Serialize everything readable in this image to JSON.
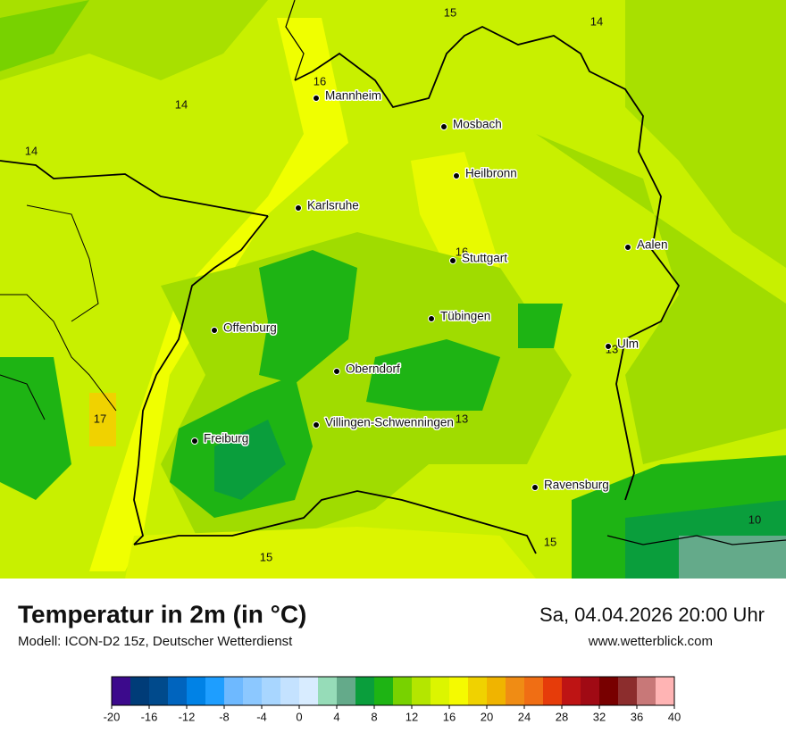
{
  "header": {
    "title": "Temperatur in 2m (in °C)",
    "model": "Modell: ICON-D2 15z, Deutscher Wetterdienst",
    "datetime": "Sa, 04.04.2026 20:00 Uhr",
    "website": "www.wetterblick.com"
  },
  "cities": [
    "Mannheim",
    "Mosbach",
    "Heilbronn",
    "Karlsruhe",
    "Stuttgart",
    "Aalen",
    "Tübingen",
    "Offenburg",
    "Ulm",
    "Oberndorf",
    "Villingen-Schwenningen",
    "Freiburg",
    "Ravensburg"
  ],
  "map_labels": [
    "15",
    "14",
    "16",
    "14",
    "14",
    "16",
    "13",
    "17",
    "13",
    "15",
    "10",
    "15"
  ],
  "colorbar": {
    "lim": [
      -20,
      40
    ],
    "ticks": [
      -20,
      -16,
      -12,
      -8,
      -4,
      0,
      4,
      8,
      12,
      16,
      20,
      24,
      28,
      32,
      36,
      40
    ],
    "colors": [
      "#3c0a8c",
      "#003c78",
      "#004a8c",
      "#0064be",
      "#0082e6",
      "#1e9eff",
      "#6eb9ff",
      "#8cc8ff",
      "#a8d6ff",
      "#c4e2ff",
      "#d8ecff",
      "#96dcb8",
      "#64aa8a",
      "#0a9e3c",
      "#1eb414",
      "#78d200",
      "#b4e600",
      "#dcf500",
      "#f5fa00",
      "#f0d200",
      "#f0b400",
      "#f08c14",
      "#f06e14",
      "#e63c0a",
      "#be1414",
      "#a00a14",
      "#780000",
      "#8c2d2d",
      "#c87878",
      "#ffb4b4",
      "#ffdcdc"
    ]
  }
}
